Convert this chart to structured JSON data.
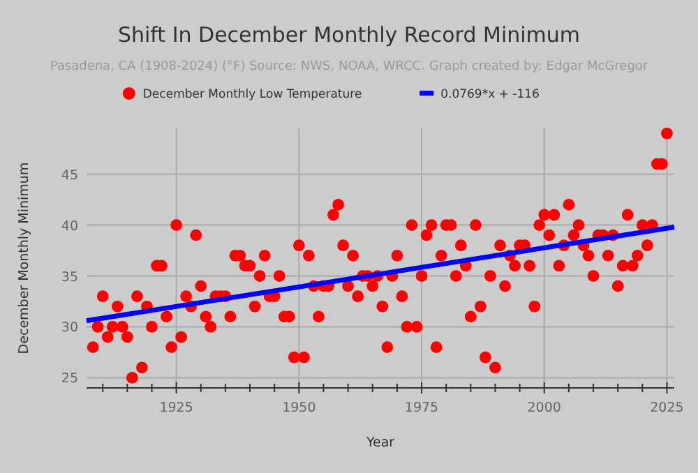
{
  "chart_data": {
    "type": "scatter",
    "title": "Shift In December Monthly Record Minimum",
    "subtitle": "Pasadena, CA (1908-2024) (°F) Source: NWS, NOAA, WRCC. Graph created by: Edgar McGregor",
    "xlabel": "Year",
    "ylabel": "December Monthly Minimum",
    "series": [
      {
        "name": "December Monthly Low Temperature",
        "color": "#ff0000",
        "marker": "circle",
        "x": [
          1908,
          1909,
          1910,
          1911,
          1912,
          1913,
          1914,
          1915,
          1916,
          1917,
          1918,
          1919,
          1920,
          1921,
          1922,
          1923,
          1924,
          1925,
          1926,
          1927,
          1928,
          1929,
          1930,
          1931,
          1932,
          1933,
          1934,
          1935,
          1936,
          1937,
          1938,
          1939,
          1940,
          1941,
          1942,
          1943,
          1944,
          1945,
          1946,
          1947,
          1948,
          1949,
          1950,
          1951,
          1952,
          1953,
          1954,
          1955,
          1956,
          1957,
          1958,
          1959,
          1960,
          1961,
          1962,
          1963,
          1964,
          1965,
          1966,
          1967,
          1968,
          1969,
          1970,
          1971,
          1972,
          1973,
          1974,
          1975,
          1976,
          1977,
          1978,
          1979,
          1980,
          1981,
          1982,
          1983,
          1984,
          1985,
          1986,
          1987,
          1988,
          1989,
          1990,
          1991,
          1992,
          1993,
          1994,
          1995,
          1996,
          1997,
          1998,
          1999,
          2000,
          2001,
          2002,
          2003,
          2004,
          2005,
          2006,
          2007,
          2008,
          2009,
          2010,
          2011,
          2012,
          2013,
          2014,
          2015,
          2016,
          2017,
          2018,
          2019,
          2020,
          2021,
          2022,
          2023,
          2024,
          2025
        ],
        "values": [
          28,
          30,
          33,
          29,
          30,
          32,
          30,
          29,
          25,
          33,
          26,
          32,
          30,
          36,
          36,
          31,
          28,
          40,
          29,
          33,
          32,
          39,
          34,
          31,
          30,
          33,
          33,
          33,
          31,
          37,
          37,
          36,
          36,
          32,
          35,
          37,
          33,
          33,
          35,
          31,
          31,
          27,
          38,
          27,
          37,
          34,
          31,
          34,
          34,
          41,
          42,
          38,
          34,
          37,
          33,
          35,
          35,
          34,
          35,
          32,
          28,
          35,
          37,
          33,
          30,
          40,
          30,
          35,
          39,
          40,
          28,
          37,
          40,
          40,
          35,
          38,
          36,
          31,
          40,
          32,
          27,
          35,
          26,
          38,
          34,
          37,
          36,
          38,
          38,
          36,
          32,
          40,
          41,
          39,
          41,
          36,
          38,
          42,
          39,
          40,
          38,
          37,
          35,
          39,
          39,
          37,
          39,
          34,
          36,
          41,
          36,
          37,
          40,
          38,
          40,
          46,
          46,
          49
        ]
      },
      {
        "name": "0.0769*x + -116",
        "color": "#0000ff",
        "type": "line",
        "marker": "none",
        "x": [
          1906.7,
          2026.5
        ],
        "values": [
          30.6,
          39.8
        ]
      }
    ],
    "xlim": [
      1906.7,
      2026.5
    ],
    "xticks": [
      {
        "value": 1910,
        "label": null
      },
      {
        "value": 1915,
        "label": null
      },
      {
        "value": 1920,
        "label": null
      },
      1925,
      {
        "value": 1930,
        "label": null
      },
      {
        "value": 1935,
        "label": null
      },
      {
        "value": 1940,
        "label": null
      },
      {
        "value": 1945,
        "label": null
      },
      1950,
      {
        "value": 1955,
        "label": null
      },
      {
        "value": 1960,
        "label": null
      },
      {
        "value": 1965,
        "label": null
      },
      {
        "value": 1970,
        "label": null
      },
      1975,
      {
        "value": 1980,
        "label": null
      },
      {
        "value": 1985,
        "label": null
      },
      {
        "value": 1990,
        "label": null
      },
      {
        "value": 1995,
        "label": null
      },
      2000,
      {
        "value": 2005,
        "label": null
      },
      {
        "value": 2010,
        "label": null
      },
      {
        "value": 2015,
        "label": null
      },
      {
        "value": 2020,
        "label": null
      },
      2025
    ],
    "ylim": [
      24,
      49.5
    ],
    "yticks": [
      25,
      30,
      35,
      40,
      45
    ],
    "grid": true,
    "legend": "top"
  }
}
